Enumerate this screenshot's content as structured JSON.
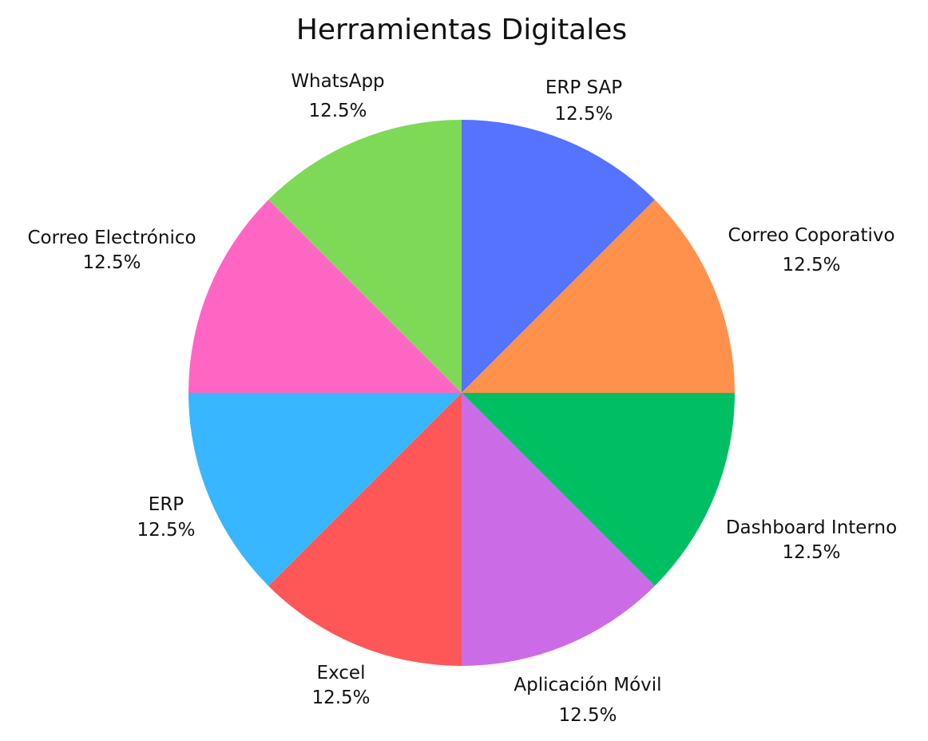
{
  "chart_data": {
    "type": "pie",
    "title": "Herramientas Digitales",
    "slices": [
      {
        "label": "ERP SAP",
        "value": 12.5,
        "percent_label": "12.5%",
        "color": "#5573FF"
      },
      {
        "label": "Correo Coporativo",
        "value": 12.5,
        "percent_label": "12.5%",
        "color": "#FF914D"
      },
      {
        "label": "Dashboard Interno",
        "value": 12.5,
        "percent_label": "12.5%",
        "color": "#00BF63"
      },
      {
        "label": "Aplicación Móvil",
        "value": 12.5,
        "percent_label": "12.5%",
        "color": "#CB6CE6"
      },
      {
        "label": "Excel",
        "value": 12.5,
        "percent_label": "12.5%",
        "color": "#FF5757"
      },
      {
        "label": "ERP",
        "value": 12.5,
        "percent_label": "12.5%",
        "color": "#38B6FF"
      },
      {
        "label": "Correo Electrónico",
        "value": 12.5,
        "percent_label": "12.5%",
        "color": "#FF66C4"
      },
      {
        "label": "WhatsApp",
        "value": 12.5,
        "percent_label": "12.5%",
        "color": "#7ED957"
      }
    ],
    "start_angle": "top",
    "direction": "clockwise",
    "legend": "none"
  }
}
